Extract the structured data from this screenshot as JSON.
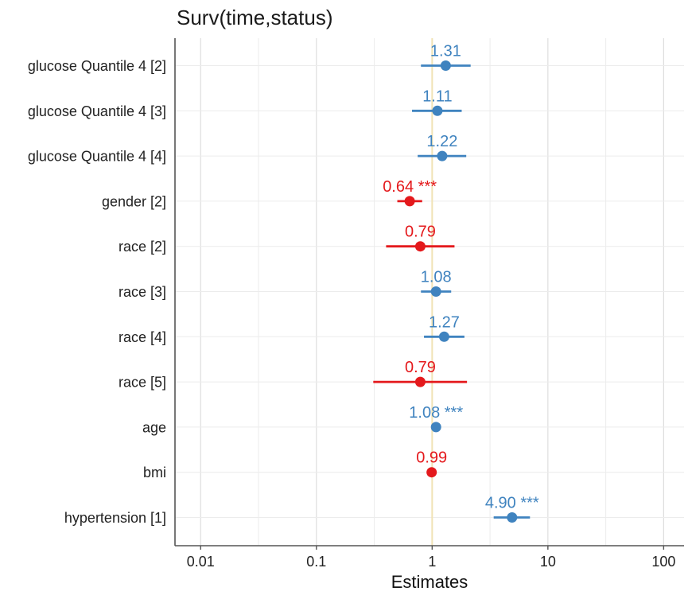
{
  "chart_data": {
    "type": "forest",
    "title": "Surv(time,status)",
    "xlabel": "Estimates",
    "x_scale": "log",
    "xlim": [
      0.006,
      150
    ],
    "x_ticks": [
      0.01,
      0.1,
      1,
      10,
      100
    ],
    "x_tick_labels": [
      "0.01",
      "0.1",
      "1",
      "10",
      "100"
    ],
    "reference_line": 1,
    "colors": {
      "positive": "#3f83bf",
      "negative": "#e4191c",
      "reference": "#f1e3b5"
    },
    "terms": [
      {
        "label": "glucose Quantile 4 [2]",
        "estimate": 1.31,
        "ci_low": 0.8,
        "ci_high": 2.15,
        "text": "1.31",
        "sig": "",
        "direction": "positive"
      },
      {
        "label": "glucose Quantile 4 [3]",
        "estimate": 1.11,
        "ci_low": 0.67,
        "ci_high": 1.8,
        "text": "1.11",
        "sig": "",
        "direction": "positive"
      },
      {
        "label": "glucose Quantile 4 [4]",
        "estimate": 1.22,
        "ci_low": 0.75,
        "ci_high": 1.97,
        "text": "1.22",
        "sig": "",
        "direction": "positive"
      },
      {
        "label": "gender [2]",
        "estimate": 0.64,
        "ci_low": 0.5,
        "ci_high": 0.82,
        "text": "0.64",
        "sig": "***",
        "direction": "negative"
      },
      {
        "label": "race [2]",
        "estimate": 0.79,
        "ci_low": 0.4,
        "ci_high": 1.56,
        "text": "0.79",
        "sig": "",
        "direction": "negative"
      },
      {
        "label": "race [3]",
        "estimate": 1.08,
        "ci_low": 0.8,
        "ci_high": 1.46,
        "text": "1.08",
        "sig": "",
        "direction": "positive"
      },
      {
        "label": "race [4]",
        "estimate": 1.27,
        "ci_low": 0.85,
        "ci_high": 1.9,
        "text": "1.27",
        "sig": "",
        "direction": "positive"
      },
      {
        "label": "race [5]",
        "estimate": 0.79,
        "ci_low": 0.31,
        "ci_high": 2.0,
        "text": "0.79",
        "sig": "",
        "direction": "negative"
      },
      {
        "label": "age",
        "estimate": 1.08,
        "ci_low": 1.06,
        "ci_high": 1.1,
        "text": "1.08",
        "sig": "***",
        "direction": "positive"
      },
      {
        "label": "bmi",
        "estimate": 0.99,
        "ci_low": 0.97,
        "ci_high": 1.01,
        "text": "0.99",
        "sig": "",
        "direction": "negative"
      },
      {
        "label": "hypertension [1]",
        "estimate": 4.9,
        "ci_low": 3.4,
        "ci_high": 7.0,
        "text": "4.90",
        "sig": "***",
        "direction": "positive"
      }
    ]
  }
}
